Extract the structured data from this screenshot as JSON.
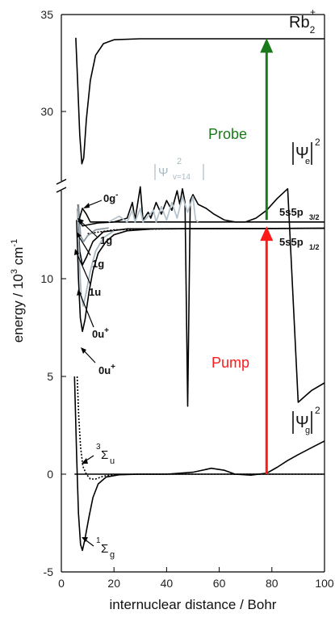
{
  "chart_data": {
    "type": "line",
    "xlabel": "internuclear distance / Bohr",
    "ylabel_main": "energy / 10",
    "ylabel_exp": "3",
    "ylabel_unit": "cm",
    "ylabel_unit_exp": "-1",
    "xlim": [
      0,
      100
    ],
    "ylim_lower": [
      -5,
      13.5
    ],
    "ylim_upper": [
      25.5,
      35
    ],
    "x_ticks": [
      "0",
      "20",
      "40",
      "60",
      "80",
      "100"
    ],
    "y_ticks_lower": [
      "-5",
      "0",
      "5",
      "10"
    ],
    "y_ticks_upper": [
      "30",
      "35"
    ],
    "axis_break": true,
    "labels": {
      "rb2": "Rb",
      "rb2_sub": "2",
      "rb2_sup": "+",
      "probe": "Probe",
      "pump": "Pump",
      "psi_e": "Ψ",
      "psi_e_sub": "e",
      "psi_e_sup": "2",
      "psi_g": "Ψ",
      "psi_g_sub": "g",
      "psi_g_sup": "2",
      "psi_v": "Ψ",
      "psi_v_sub": "v=14",
      "psi_v_sup": "2",
      "asym_32_main": "5s5p",
      "asym_32_sub": "3/2",
      "asym_12_main": "5s5p",
      "asym_12_sub": "1/2",
      "state_0g": "0g",
      "state_0g_sup": "-",
      "state_1g_a": "1g",
      "state_1g_b": "1g",
      "state_1u": "1u",
      "state_0u_a": "0u",
      "state_0u_a_sup": "+",
      "state_0u_b": "0u",
      "state_0u_b_sup": "+",
      "state_3su_pre": "3",
      "state_3su_main": "Σ",
      "state_3su_sub": "u",
      "state_1sg_pre": "1",
      "state_1sg_main": "Σ",
      "state_1sg_sub": "g"
    },
    "series": [
      {
        "key": "rb2_ion",
        "color": "#000000",
        "points": [
          [
            5.5,
            33.8
          ],
          [
            6.2,
            31.5
          ],
          [
            7.0,
            28.8
          ],
          [
            7.8,
            27.3
          ],
          [
            8.5,
            27.6
          ],
          [
            9.5,
            29.6
          ],
          [
            11,
            31.6
          ],
          [
            13,
            32.9
          ],
          [
            16,
            33.5
          ],
          [
            20,
            33.7
          ],
          [
            30,
            33.75
          ],
          [
            60,
            33.75
          ],
          [
            100,
            33.75
          ]
        ]
      },
      {
        "key": "X_1sigma_g",
        "color": "#000000",
        "points": [
          [
            5.0,
            5.0
          ],
          [
            5.8,
            1.0
          ],
          [
            6.5,
            -2.0
          ],
          [
            7.3,
            -3.6
          ],
          [
            8.0,
            -3.9
          ],
          [
            9.0,
            -3.3
          ],
          [
            10.5,
            -2.2
          ],
          [
            12,
            -1.2
          ],
          [
            14,
            -0.5
          ],
          [
            17,
            -0.15
          ],
          [
            22,
            -0.03
          ],
          [
            30,
            0
          ],
          [
            100,
            0
          ]
        ]
      },
      {
        "key": "a_3sigma_u",
        "color": "#000000",
        "dashed": true,
        "points": [
          [
            6.0,
            5.0
          ],
          [
            6.6,
            3.0
          ],
          [
            7.3,
            1.4
          ],
          [
            8.2,
            0.4
          ],
          [
            9.5,
            0
          ],
          [
            11,
            -0.25
          ],
          [
            13,
            -0.25
          ],
          [
            16,
            -0.1
          ],
          [
            20,
            -0.02
          ],
          [
            30,
            0
          ],
          [
            100,
            0
          ]
        ]
      },
      {
        "key": "asym_5s5p_12",
        "color": "#000000",
        "dashed": true,
        "points": [
          [
            10,
            12.3
          ],
          [
            20,
            12.5
          ],
          [
            40,
            12.55
          ],
          [
            100,
            12.58
          ]
        ]
      },
      {
        "key": "state_0u_inner",
        "color": "#000000",
        "points": [
          [
            5.8,
            13.0
          ],
          [
            6.5,
            10.0
          ],
          [
            7.2,
            8.0
          ],
          [
            8.0,
            7.3
          ],
          [
            9.0,
            7.9
          ],
          [
            10.5,
            9.3
          ],
          [
            12,
            10.4
          ],
          [
            14,
            11.3
          ],
          [
            17,
            11.9
          ],
          [
            20,
            12.25
          ],
          [
            25,
            12.45
          ],
          [
            35,
            12.55
          ],
          [
            100,
            12.58
          ]
        ]
      },
      {
        "key": "state_1u",
        "color": "#000000",
        "points": [
          [
            6.2,
            13.2
          ],
          [
            7.0,
            11.4
          ],
          [
            8.0,
            10.7
          ],
          [
            9.5,
            11.1
          ],
          [
            12,
            11.9
          ],
          [
            16,
            12.4
          ],
          [
            25,
            12.55
          ],
          [
            100,
            12.58
          ]
        ]
      },
      {
        "key": "state_0g",
        "color": "#000000",
        "points": [
          [
            6.3,
            13.8
          ],
          [
            7.0,
            13.0
          ],
          [
            8.0,
            12.7
          ],
          [
            10,
            12.75
          ],
          [
            14,
            12.85
          ],
          [
            20,
            12.9
          ],
          [
            35,
            12.9
          ],
          [
            100,
            12.9
          ]
        ]
      },
      {
        "key": "gray_0u",
        "color": "#a8b8c0",
        "points": [
          [
            6.0,
            13.6
          ],
          [
            6.8,
            11.0
          ],
          [
            7.5,
            9.2
          ],
          [
            8.3,
            8.6
          ],
          [
            9.3,
            9.2
          ],
          [
            11,
            10.4
          ],
          [
            13,
            11.4
          ],
          [
            16,
            12.1
          ],
          [
            20,
            12.45
          ]
        ]
      },
      {
        "key": "gray_1g",
        "color": "#8e99a3",
        "points": [
          [
            6.5,
            13.8
          ],
          [
            7.3,
            12.2
          ],
          [
            8.5,
            11.9
          ],
          [
            10,
            12.2
          ],
          [
            13,
            12.5
          ],
          [
            18,
            12.6
          ]
        ]
      },
      {
        "key": "psi_e",
        "color": "#000000",
        "points": [
          [
            6.5,
            12.9
          ],
          [
            8,
            13.6
          ],
          [
            9.5,
            13.3
          ],
          [
            11,
            12.9
          ],
          [
            20,
            12.9
          ],
          [
            25,
            13.1
          ],
          [
            27,
            13.9
          ],
          [
            28,
            13.0
          ],
          [
            30,
            14.7
          ],
          [
            31,
            13.0
          ],
          [
            33,
            13.4
          ],
          [
            34,
            13.1
          ],
          [
            36,
            13.9
          ],
          [
            38,
            13.3
          ],
          [
            40,
            14.0
          ],
          [
            42,
            13.5
          ],
          [
            44,
            14.5
          ],
          [
            45,
            13.8
          ],
          [
            46,
            14.6
          ],
          [
            47,
            13.9
          ],
          [
            48,
            14.8
          ],
          [
            49,
            14.0
          ],
          [
            50,
            14.3
          ],
          [
            52,
            13.8
          ],
          [
            55,
            13.6
          ],
          [
            58,
            13.3
          ],
          [
            62,
            13.0
          ],
          [
            66,
            12.9
          ],
          [
            70,
            12.9
          ],
          [
            74,
            13.1
          ],
          [
            78,
            13.5
          ],
          [
            82,
            14.1
          ],
          [
            86,
            14.6
          ],
          [
            90,
            15.0
          ],
          [
            95,
            15.6
          ],
          [
            100,
            16.0
          ]
        ]
      },
      {
        "key": "psi_v14",
        "color": "#b7c3cb",
        "points": [
          [
            18,
            12.9
          ],
          [
            22,
            13.2
          ],
          [
            25,
            12.9
          ],
          [
            27,
            13.5
          ],
          [
            28,
            12.9
          ],
          [
            30,
            13.6
          ],
          [
            31,
            12.9
          ],
          [
            33,
            13.2
          ],
          [
            35,
            13.5
          ],
          [
            36,
            12.9
          ],
          [
            38,
            13.7
          ],
          [
            40,
            13.0
          ],
          [
            42,
            13.9
          ],
          [
            44,
            13.1
          ],
          [
            46,
            14.2
          ],
          [
            48,
            13.4
          ],
          [
            50,
            14.2
          ],
          [
            51,
            13.0
          ],
          [
            52,
            12.9
          ]
        ]
      },
      {
        "key": "psi_g",
        "color": "#000000",
        "points": [
          [
            5,
            0
          ],
          [
            10,
            0
          ],
          [
            20,
            0
          ],
          [
            40,
            0
          ],
          [
            50,
            0.1
          ],
          [
            57,
            0.3
          ],
          [
            62,
            0.2
          ],
          [
            66,
            0
          ],
          [
            72,
            -0.05
          ],
          [
            78,
            0.05
          ],
          [
            82,
            0.35
          ],
          [
            86,
            0.7
          ],
          [
            90,
            1.0
          ],
          [
            95,
            1.35
          ],
          [
            100,
            1.7
          ]
        ]
      }
    ],
    "arrows": [
      {
        "key": "pump",
        "color": "#ff1a1a",
        "x": 78,
        "y_from": 0,
        "y_to": 12.6
      },
      {
        "key": "probe",
        "color": "#1a7a1a",
        "x": 78,
        "y_from": 13.0,
        "y_to": 33.7
      }
    ]
  }
}
